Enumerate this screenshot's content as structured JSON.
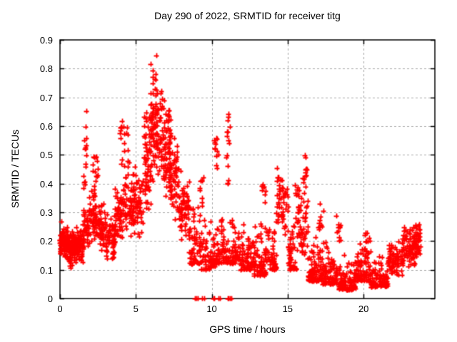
{
  "chart_data": {
    "type": "scatter",
    "title": "Day 290 of 2022, SRMTID for receiver titg",
    "xlabel": "GPS time / hours",
    "ylabel": "SRMTID / TECUs",
    "series_name": "SRMTID",
    "legend": "none",
    "xlim": [
      0,
      24.7
    ],
    "ylim": [
      0,
      0.9
    ],
    "x_ticks": [
      {
        "v": 0,
        "label": "0"
      },
      {
        "v": 5,
        "label": "5"
      },
      {
        "v": 10,
        "label": "10"
      },
      {
        "v": 15,
        "label": "15"
      },
      {
        "v": 20,
        "label": "20"
      }
    ],
    "y_ticks": [
      {
        "v": 0.0,
        "label": "0"
      },
      {
        "v": 0.1,
        "label": "0.1"
      },
      {
        "v": 0.2,
        "label": "0.2"
      },
      {
        "v": 0.3,
        "label": "0.3"
      },
      {
        "v": 0.4,
        "label": "0.4"
      },
      {
        "v": 0.5,
        "label": "0.5"
      },
      {
        "v": 0.6,
        "label": "0.6"
      },
      {
        "v": 0.7,
        "label": "0.7"
      },
      {
        "v": 0.8,
        "label": "0.8"
      },
      {
        "v": 0.9,
        "label": "0.9"
      }
    ],
    "grid": {
      "show": true,
      "style": "dashed",
      "color": "#a8a8a8",
      "dash": [
        3,
        3
      ]
    },
    "background": "#ffffff",
    "axis_color": "#000000",
    "marker": {
      "shape": "plus",
      "color": "#ff0000",
      "size": 7,
      "stroke": 1.8
    },
    "max_point": {
      "x": 6.1,
      "y": 0.86
    },
    "density_profile": {
      "fields": [
        "t_start_h",
        "t_end_h",
        "y_min",
        "y_max",
        "count",
        "spread"
      ],
      "segments": [
        [
          0.0,
          0.5,
          0.13,
          0.27,
          80,
          "mid"
        ],
        [
          0.5,
          1.0,
          0.1,
          0.24,
          75,
          "mid"
        ],
        [
          1.0,
          1.5,
          0.11,
          0.26,
          70,
          "mid"
        ],
        [
          1.55,
          1.78,
          0.38,
          0.79,
          16,
          "uniform"
        ],
        [
          1.5,
          1.9,
          0.15,
          0.33,
          40,
          "mid"
        ],
        [
          1.9,
          2.4,
          0.18,
          0.4,
          50,
          "mid"
        ],
        [
          2.15,
          2.55,
          0.36,
          0.5,
          15,
          "uniform"
        ],
        [
          2.4,
          3.0,
          0.16,
          0.34,
          55,
          "mid"
        ],
        [
          3.0,
          3.6,
          0.11,
          0.3,
          55,
          "mid"
        ],
        [
          3.6,
          4.1,
          0.18,
          0.4,
          50,
          "mid"
        ],
        [
          3.95,
          4.55,
          0.38,
          0.62,
          26,
          "uniform"
        ],
        [
          4.1,
          4.8,
          0.2,
          0.42,
          55,
          "mid"
        ],
        [
          4.8,
          5.5,
          0.2,
          0.47,
          60,
          "mid"
        ],
        [
          5.5,
          6.0,
          0.28,
          0.68,
          65,
          "mid"
        ],
        [
          5.9,
          6.35,
          0.55,
          0.86,
          26,
          "uniform"
        ],
        [
          6.0,
          6.7,
          0.38,
          0.74,
          75,
          "mid"
        ],
        [
          6.7,
          7.3,
          0.35,
          0.72,
          75,
          "mid"
        ],
        [
          7.2,
          7.8,
          0.26,
          0.6,
          60,
          "mid"
        ],
        [
          7.8,
          8.5,
          0.18,
          0.45,
          65,
          "mid"
        ],
        [
          8.5,
          9.3,
          0.12,
          0.35,
          65,
          "low"
        ],
        [
          9.2,
          9.45,
          0.32,
          0.46,
          9,
          "uniform"
        ],
        [
          9.3,
          10.2,
          0.1,
          0.32,
          65,
          "low"
        ],
        [
          10.15,
          10.45,
          0.44,
          0.56,
          12,
          "uniform"
        ],
        [
          10.2,
          11.0,
          0.12,
          0.33,
          60,
          "low"
        ],
        [
          10.95,
          11.2,
          0.38,
          0.67,
          15,
          "uniform"
        ],
        [
          11.0,
          11.9,
          0.12,
          0.32,
          60,
          "low"
        ],
        [
          11.9,
          12.8,
          0.1,
          0.29,
          70,
          "low"
        ],
        [
          12.8,
          13.6,
          0.08,
          0.3,
          70,
          "low"
        ],
        [
          13.3,
          13.55,
          0.32,
          0.45,
          8,
          "uniform"
        ],
        [
          13.6,
          14.25,
          0.1,
          0.3,
          50,
          "low"
        ],
        [
          14.25,
          15.05,
          0.2,
          0.46,
          55,
          "mid"
        ],
        [
          15.05,
          15.65,
          0.1,
          0.28,
          45,
          "low"
        ],
        [
          15.3,
          15.75,
          0.24,
          0.4,
          14,
          "uniform"
        ],
        [
          15.6,
          16.35,
          0.13,
          0.35,
          50,
          "mid"
        ],
        [
          16.0,
          16.3,
          0.36,
          0.51,
          13,
          "uniform"
        ],
        [
          16.35,
          17.3,
          0.06,
          0.23,
          85,
          "low"
        ],
        [
          17.05,
          17.35,
          0.22,
          0.33,
          10,
          "uniform"
        ],
        [
          17.3,
          18.25,
          0.05,
          0.2,
          85,
          "low"
        ],
        [
          18.2,
          18.5,
          0.19,
          0.29,
          11,
          "uniform"
        ],
        [
          18.4,
          19.5,
          0.03,
          0.17,
          95,
          "low"
        ],
        [
          19.5,
          20.5,
          0.06,
          0.21,
          80,
          "low"
        ],
        [
          20.1,
          20.45,
          0.14,
          0.23,
          12,
          "uniform"
        ],
        [
          20.5,
          21.6,
          0.04,
          0.17,
          85,
          "low"
        ],
        [
          21.6,
          22.6,
          0.07,
          0.2,
          80,
          "mid"
        ],
        [
          22.6,
          23.45,
          0.1,
          0.26,
          75,
          "mid"
        ],
        [
          23.4,
          23.75,
          0.13,
          0.27,
          35,
          "mid"
        ]
      ]
    },
    "zero_marks_x": [
      8.9,
      8.97,
      9.1,
      9.35,
      9.5,
      10.1,
      10.18,
      10.45,
      10.55,
      11.05,
      11.12,
      11.18,
      11.3
    ]
  }
}
